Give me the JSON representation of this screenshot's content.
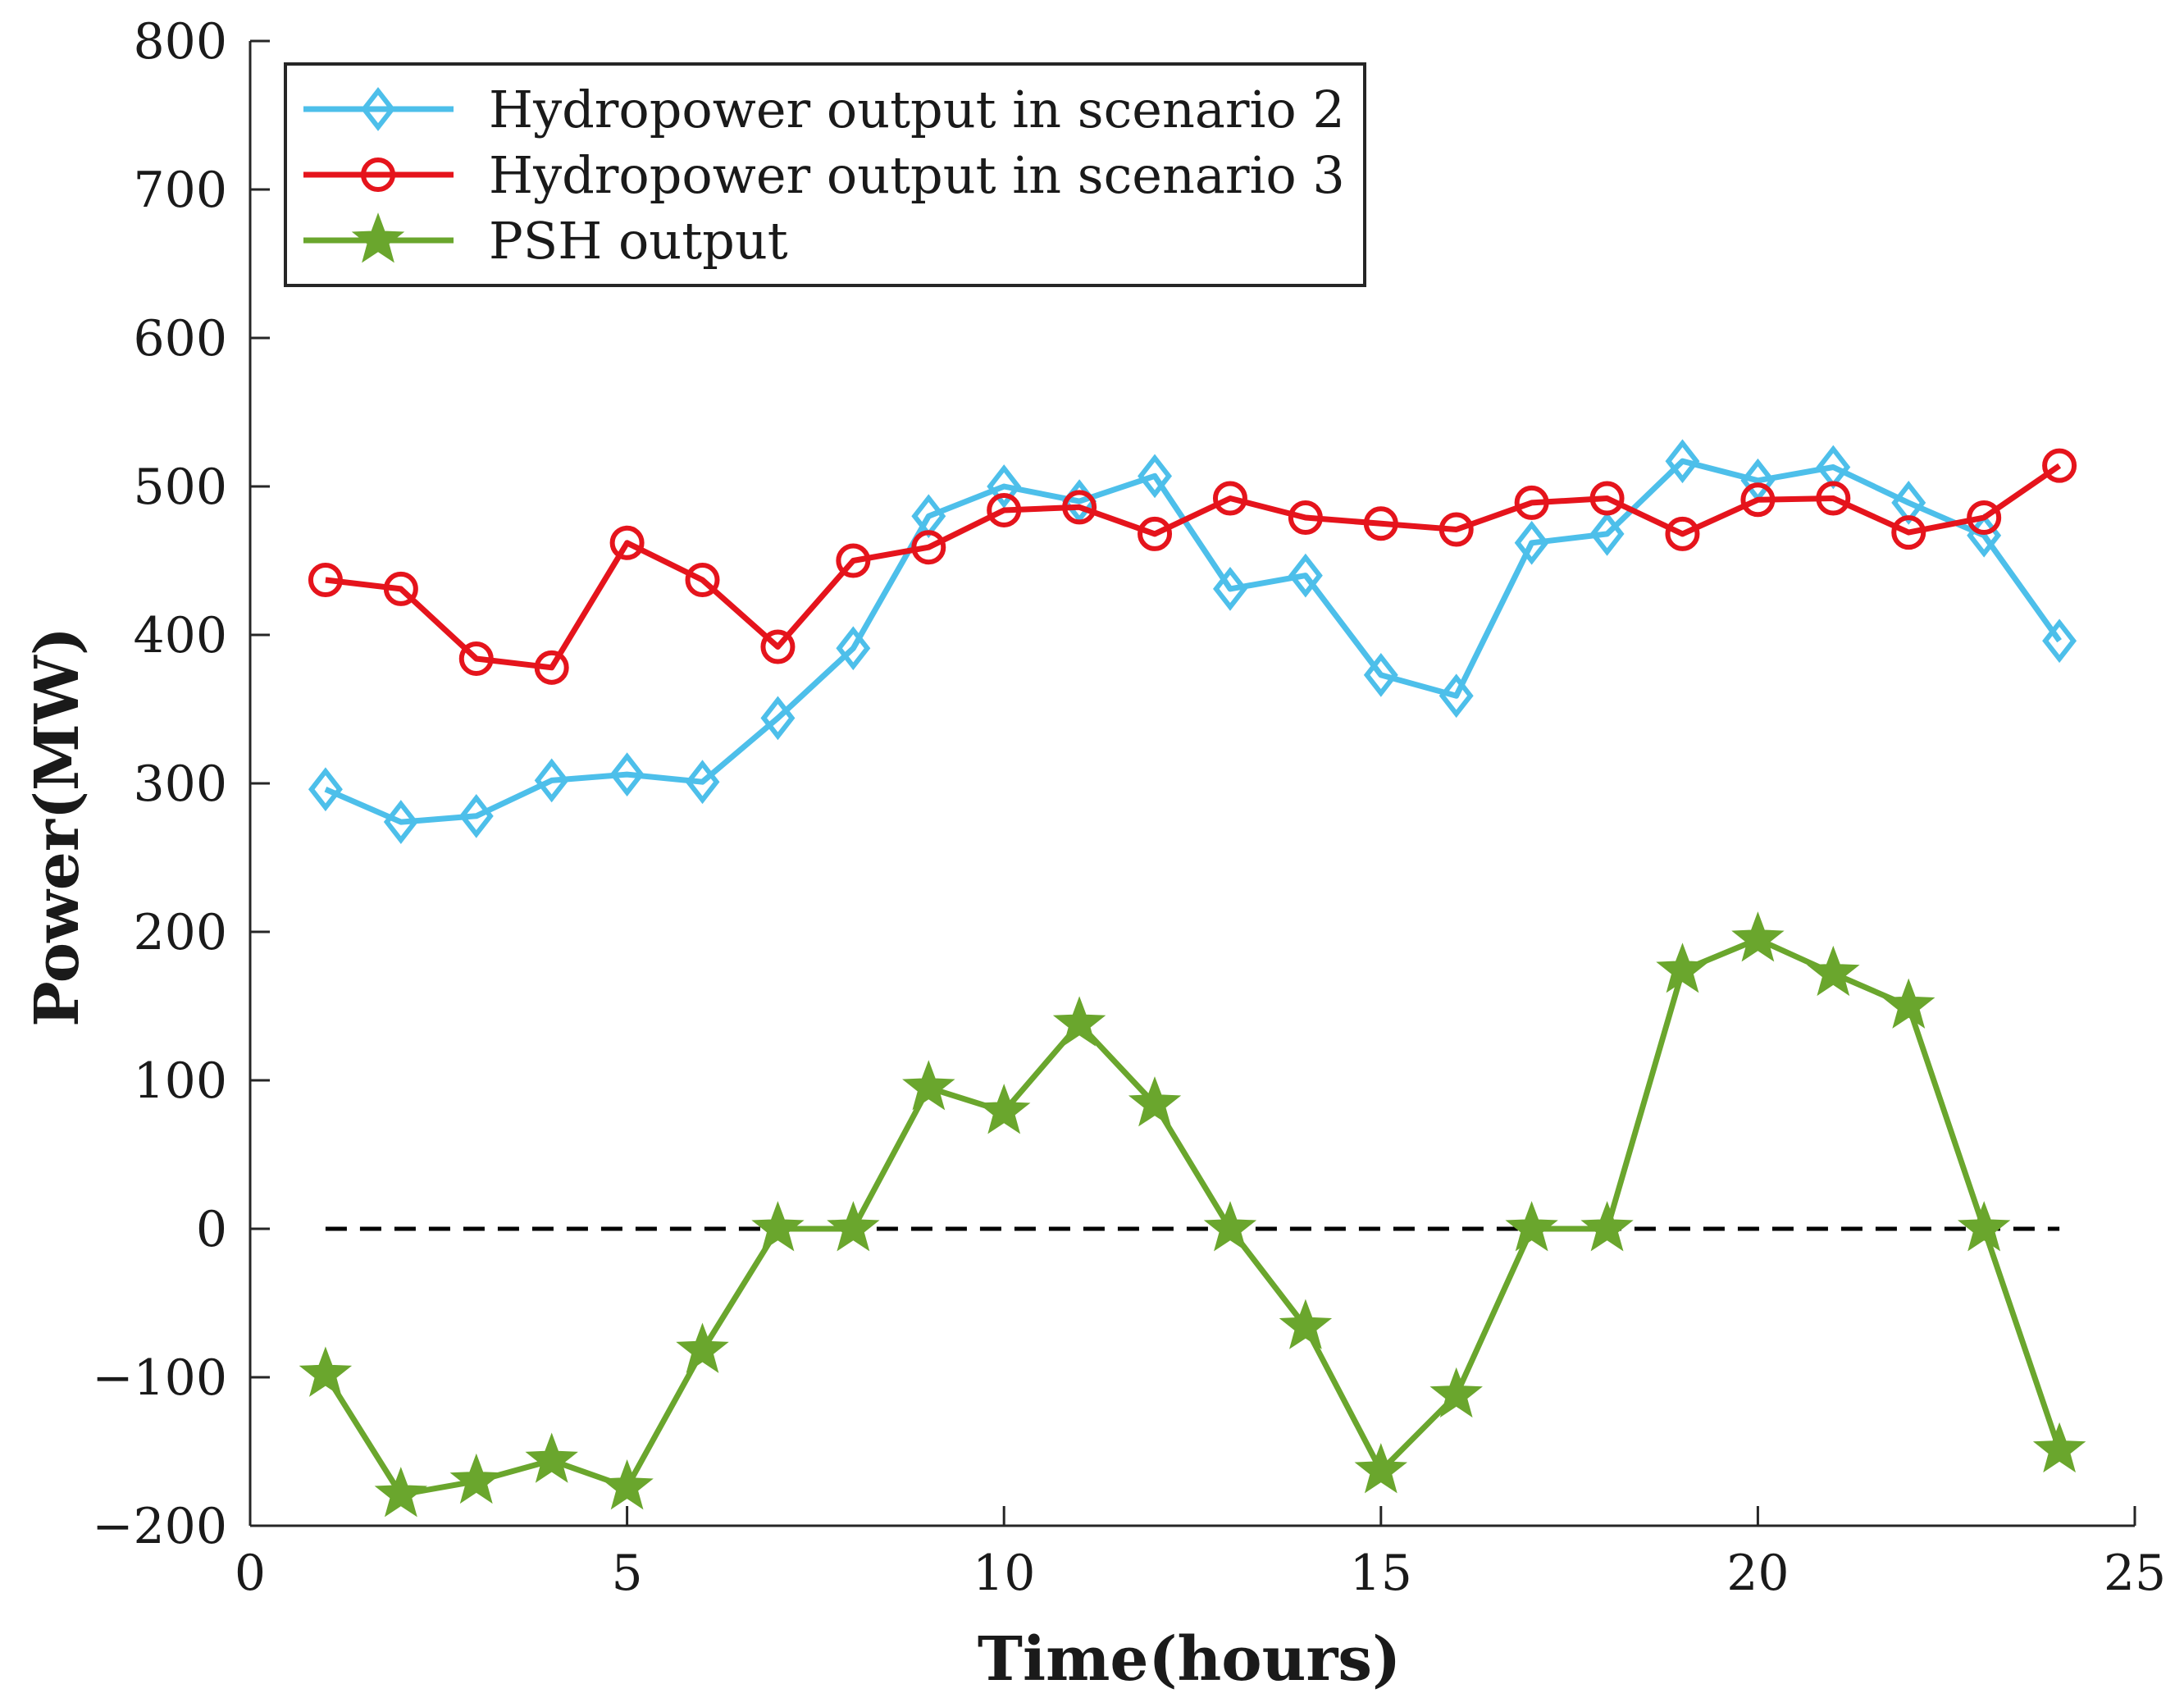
{
  "chart_data": {
    "type": "line",
    "title": "",
    "xlabel": "Time(hours)",
    "ylabel": "Power(MW)",
    "xlim": [
      0,
      25
    ],
    "ylim": [
      -200,
      800
    ],
    "xticks": [
      0,
      5,
      10,
      15,
      20,
      25
    ],
    "yticks": [
      -200,
      -100,
      0,
      100,
      200,
      300,
      400,
      500,
      600,
      700,
      800
    ],
    "xtick_labels": [
      "0",
      "5",
      "10",
      "15",
      "20",
      "25"
    ],
    "ytick_labels": [
      "−200",
      "−100",
      "0",
      "100",
      "200",
      "300",
      "400",
      "500",
      "600",
      "700",
      "800"
    ],
    "grid": false,
    "legend_position": "top-left",
    "x": [
      1,
      2,
      3,
      4,
      5,
      6,
      7,
      8,
      9,
      10,
      11,
      12,
      13,
      14,
      15,
      16,
      17,
      18,
      19,
      20,
      21,
      22,
      23,
      24
    ],
    "series": [
      {
        "name": "Hydropower output in scenario 2",
        "color": "#4dbfea",
        "marker": "diamond",
        "values": [
          296,
          274,
          278,
          302,
          306,
          301,
          344,
          391,
          480,
          500,
          490,
          507,
          431,
          440,
          373,
          359,
          462,
          468,
          517,
          504,
          513,
          489,
          467,
          396
        ]
      },
      {
        "name": "Hydropower output in scenario 3",
        "color": "#e5141c",
        "marker": "circle",
        "values": [
          437,
          431,
          384,
          378,
          462,
          437,
          392,
          450,
          459,
          484,
          486,
          468,
          492,
          479,
          475,
          471,
          489,
          492,
          468,
          491,
          492,
          469,
          479,
          514
        ]
      },
      {
        "name": "PSH output",
        "color": "#6aa62d",
        "marker": "star",
        "values": [
          -98,
          -179,
          -170,
          -156,
          -174,
          -82,
          0,
          0,
          95,
          79,
          138,
          84,
          0,
          -66,
          -163,
          -112,
          0,
          0,
          174,
          195,
          172,
          150,
          0,
          -149
        ]
      }
    ],
    "reference_line": {
      "y": 0,
      "x_start": 1,
      "x_end": 24,
      "style": "dashed",
      "color": "#000000"
    }
  }
}
